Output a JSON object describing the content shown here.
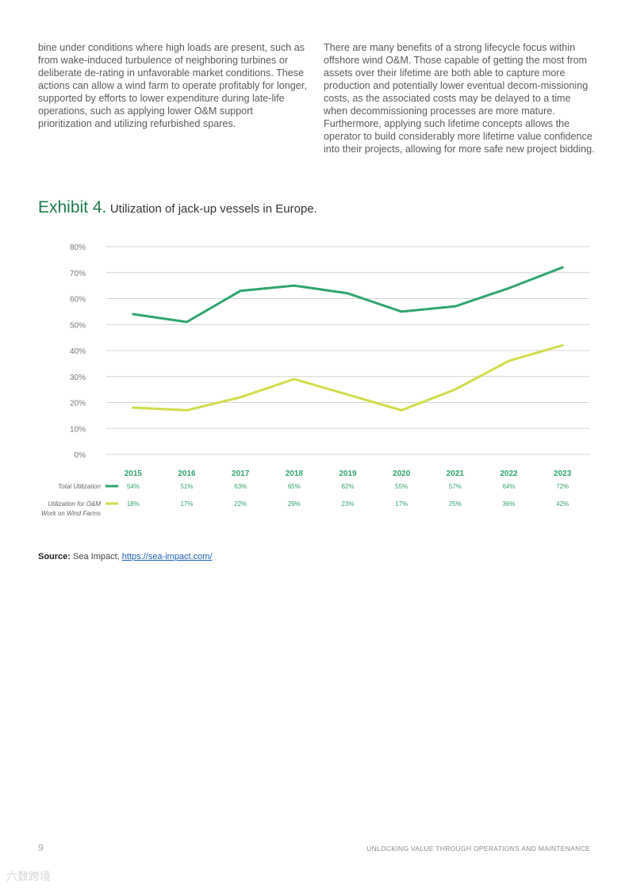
{
  "body_text": {
    "left_paragraph": "bine under conditions where high loads are present, such as from wake-induced turbulence of neighboring turbines or deliberate de-rating in unfavorable market conditions. These actions can allow a wind farm to operate profitably for longer, supported by efforts to lower expenditure during late-life operations, such as applying lower O&M support prioritization and utilizing refurbished spares.",
    "right_paragraph": "There are many benefits of a strong lifecycle focus within offshore wind O&M. Those capable of getting the most from assets over their lifetime are both able to capture more production and potentially lower eventual decom-missioning costs, as the associated costs may be delayed to a time when decommissioning processes are more mature. Furthermore, applying such lifetime concepts allows the operator to build considerably more lifetime value confidence into their projects, allowing for more safe new project bidding."
  },
  "exhibit": {
    "label": "Exhibit 4.",
    "description": "Utilization of jack-up vessels in Europe."
  },
  "chart_data": {
    "type": "line",
    "title": "Utilization of jack-up vessels in Europe.",
    "categories": [
      "2015",
      "2016",
      "2017",
      "2018",
      "2019",
      "2020",
      "2021",
      "2022",
      "2023"
    ],
    "ylim": [
      0,
      80
    ],
    "yticks": [
      0,
      10,
      20,
      30,
      40,
      50,
      60,
      70,
      80
    ],
    "ytick_labels": [
      "0%",
      "10%",
      "20%",
      "30%",
      "40%",
      "50%",
      "60%",
      "70%",
      "80%"
    ],
    "grid": true,
    "series": [
      {
        "name": "Total Utilization",
        "color": "#2fa56d",
        "values": [
          54,
          51,
          63,
          65,
          62,
          55,
          57,
          64,
          72
        ],
        "value_labels": [
          "54%",
          "51%",
          "63%",
          "65%",
          "62%",
          "55%",
          "57%",
          "64%",
          "72%"
        ]
      },
      {
        "name": "Utilization for O&M Work on Wind Farms",
        "color": "#cfdc49",
        "values": [
          18,
          17,
          22,
          29,
          23,
          17,
          25,
          36,
          42
        ],
        "value_labels": [
          "18%",
          "17%",
          "22%",
          "29%",
          "23%",
          "17%",
          "25%",
          "36%",
          "42%"
        ]
      }
    ],
    "legend_labels": [
      "Total Utilization",
      "Utilization for O&M",
      "Work on Wind Farms"
    ]
  },
  "source": {
    "label": "Source:",
    "text": "Sea Impact,",
    "link": "https://sea-impact.com/"
  },
  "footer": {
    "page_number": "9",
    "title": "UNLOCKING VALUE THROUGH OPERATIONS AND MAINTENANCE"
  },
  "watermark": "六数跨境"
}
